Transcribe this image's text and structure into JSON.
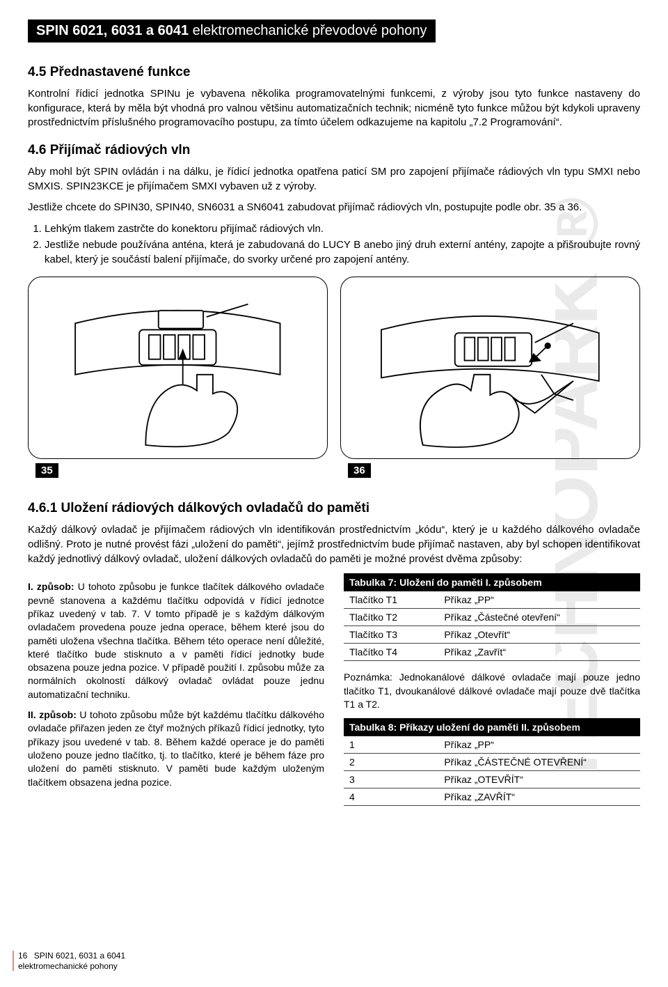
{
  "titleBar": {
    "bold": "SPIN 6021, 6031 a 6041",
    "light": " elektromechanické převodové pohony"
  },
  "sec45": {
    "heading": "4.5 Přednastavené funkce",
    "para": "Kontrolní řídicí jednotka SPINu je vybavena několika programovatelnými funkcemi, z výroby jsou tyto funkce nastaveny do konfigurace, která by měla být vhodná pro valnou většinu automatizačních technik; nicméně tyto funkce můžou být kdykoli upraveny prostřednictvím příslušného programovacího postupu, za tímto účelem odkazujeme na kapitolu „7.2 Programování“."
  },
  "sec46": {
    "heading": "4.6 Přijímač rádiových vln",
    "p1": "Aby mohl být SPIN ovládán i na dálku, je řídicí jednotka opatřena paticí SM pro zapojení přijímače rádiových vln typu SMXI nebo SMXIS. SPIN23KCE je přijímačem SMXI vybaven už z výroby.",
    "p2": "Jestliže chcete do SPIN30, SPIN40, SN6031 a SN6041 zabudovat přijímač rádiových vln, postupujte podle obr. 35 a 36.",
    "li1": "Lehkým tlakem zastrčte do konektoru přijímač rádiových vln.",
    "li2": "Jestliže nebude používána anténa, která je zabudovaná do LUCY B anebo jiný druh externí antény, zapojte a přišroubujte rovný kabel, který je součástí balení přijímače, do svorky určené pro zapojení antény."
  },
  "figs": {
    "l35": "35",
    "l36": "36"
  },
  "sec461": {
    "heading": "4.6.1 Uložení rádiových dálkových ovladačů do paměti",
    "intro": "Každý dálkový ovladač je přijímačem rádiových vln identifikován prostřednictvím „kódu“, který je u každého dálkového ovladače odlišný. Proto je nutné provést fázi „uložení do paměti“, jejímž prostřednictvím bude přijímač nastaven, aby byl schopen identifikovat každý jednotlivý dálkový ovladač, uložení dálkových ovladačů do paměti je možné provést dvěma způsoby:",
    "way1": "I. způsob: U tohoto způsobu je funkce tlačítek dálkového ovladače pevně stanovena a každému tlačítku odpovídá v řídicí jednotce příkaz uvedený v tab. 7. V tomto případě je s každým dálkovým ovladačem provedena pouze jedna operace, během které jsou do paměti uložena všechna tlačítka. Během této operace není důležité, které tlačítko bude stisknuto a v paměti řídicí jednotky bude obsazena pouze jedna pozice. V případě použití I. způsobu může za normálních okolností dálkový ovladač ovládat pouze jednu automatizační techniku.",
    "way2": "II. způsob: U tohoto způsobu může být každému tlačítku dálkového ovladače přiřazen jeden ze čtyř možných příkazů řídicí jednotky, tyto příkazy jsou uvedené v tab. 8. Během každé operace je do paměti uloženo pouze jedno tlačítko, tj. to tlačítko, které je během fáze pro uložení do paměti stisknuto. V paměti bude každým uloženým tlačítkem obsazena jedna pozice."
  },
  "tab7": {
    "title": "Tabulka 7: Uložení do paměti I. způsobem",
    "rows": [
      {
        "k": "Tlačítko T1",
        "v": "Příkaz „PP“"
      },
      {
        "k": "Tlačítko T2",
        "v": "Příkaz „Částečné otevření“"
      },
      {
        "k": "Tlačítko T3",
        "v": "Příkaz „Otevřít“"
      },
      {
        "k": "Tlačítko T4",
        "v": "Příkaz „Zavřít“"
      }
    ]
  },
  "note": "Poznámka: Jednokanálové dálkové ovladače mají pouze jedno tlačítko T1, dvoukanálové dálkové ovladače mají pouze dvě tlačítka T1 a T2.",
  "tab8": {
    "title": "Tabulka 8: Příkazy uložení do paměti II. způsobem",
    "rows": [
      {
        "k": "1",
        "v": "Příkaz „PP“"
      },
      {
        "k": "2",
        "v": "Příkaz „ČÁSTEČNÉ OTEVŘENÍ“"
      },
      {
        "k": "3",
        "v": "Příkaz „OTEVŘÍT“"
      },
      {
        "k": "4",
        "v": "Příkaz „ZAVŘÍT“"
      }
    ]
  },
  "footer": {
    "page": "16",
    "l1": "SPIN 6021, 6031 a 6041",
    "l2": "elektromechanické pohony"
  },
  "colors": {
    "black": "#000000",
    "white": "#ffffff",
    "rule": "#444444",
    "accent": "#d88"
  }
}
